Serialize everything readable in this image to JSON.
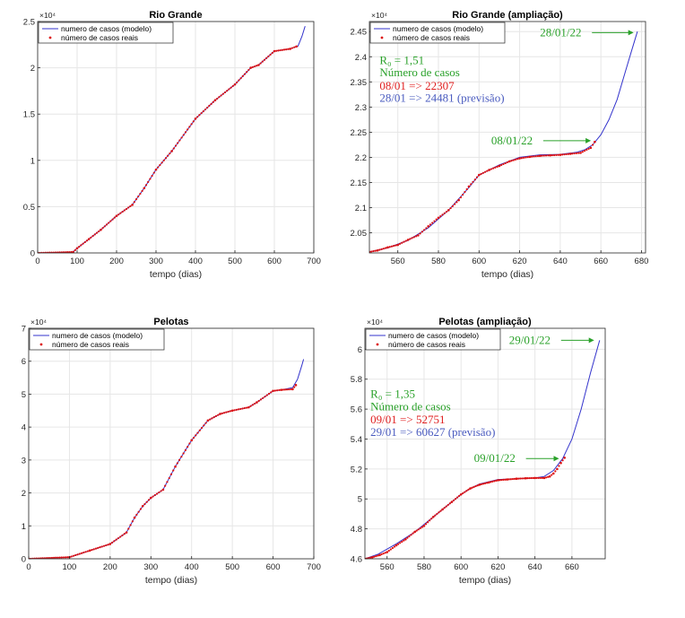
{
  "figure": {
    "colors": {
      "model": "#3333cc",
      "real": "#dd1111",
      "annotation_green": "#2aa12a",
      "annotation_red": "#e02020",
      "annotation_blue": "#4a5bbf",
      "grid": "#e6e6e6"
    }
  },
  "chart_data": [
    {
      "id": "rg",
      "type": "line",
      "title": "Rio Grande",
      "xlabel": "tempo (dias)",
      "ylabel": "",
      "exponent_label": "×10⁴",
      "xlim": [
        0,
        700
      ],
      "ylim": [
        0,
        2.5
      ],
      "xticks": [
        0,
        100,
        200,
        300,
        400,
        500,
        600,
        700
      ],
      "yticks": [
        0,
        0.5,
        1,
        1.5,
        2,
        2.5
      ],
      "ytick_labels": [
        "0",
        "0.5",
        "1",
        "1.5",
        "2",
        "2.5"
      ],
      "grid": true,
      "legend": {
        "position": "top-left",
        "entries": [
          "numero de casos (modelo)",
          "número de casos reais"
        ]
      },
      "series": [
        {
          "name": "numero de casos (modelo)",
          "style": "line",
          "x": [
            0,
            90,
            100,
            130,
            160,
            200,
            240,
            270,
            300,
            340,
            400,
            450,
            500,
            540,
            560,
            600,
            640,
            660,
            670,
            678
          ],
          "y": [
            0,
            0.01,
            0.05,
            0.15,
            0.25,
            0.4,
            0.52,
            0.7,
            0.9,
            1.1,
            1.45,
            1.65,
            1.82,
            2.0,
            2.03,
            2.18,
            2.205,
            2.235,
            2.34,
            2.45
          ]
        },
        {
          "name": "número de casos reais",
          "style": "dots",
          "x": [
            0,
            90,
            100,
            130,
            160,
            200,
            240,
            270,
            300,
            340,
            400,
            450,
            500,
            540,
            560,
            600,
            640,
            656
          ],
          "y": [
            0,
            0.01,
            0.05,
            0.15,
            0.25,
            0.4,
            0.52,
            0.7,
            0.9,
            1.1,
            1.45,
            1.65,
            1.82,
            2.0,
            2.03,
            2.18,
            2.205,
            2.2307
          ]
        }
      ],
      "annotations": []
    },
    {
      "id": "rg_zoom",
      "type": "line",
      "title": "Rio Grande (ampliação)",
      "xlabel": "tempo (dias)",
      "ylabel": "",
      "exponent_label": "×10⁴",
      "xlim": [
        546,
        682
      ],
      "ylim": [
        2.01,
        2.47
      ],
      "xticks": [
        560,
        580,
        600,
        620,
        640,
        660,
        680
      ],
      "yticks": [
        2.05,
        2.1,
        2.15,
        2.2,
        2.25,
        2.3,
        2.35,
        2.4,
        2.45
      ],
      "ytick_labels": [
        "2.05",
        "2.1",
        "2.15",
        "2.2",
        "2.25",
        "2.3",
        "2.35",
        "2.4",
        "2.45"
      ],
      "grid": true,
      "legend": {
        "position": "top-left",
        "entries": [
          "numero de casos (modelo)",
          "número de casos reais"
        ]
      },
      "series": [
        {
          "name": "numero de casos (modelo)",
          "style": "line",
          "x": [
            546,
            555,
            565,
            575,
            585,
            595,
            600,
            610,
            620,
            630,
            640,
            648,
            652,
            656,
            660,
            664,
            668,
            672,
            675,
            678
          ],
          "y": [
            2.012,
            2.02,
            2.035,
            2.06,
            2.095,
            2.14,
            2.165,
            2.185,
            2.2,
            2.205,
            2.206,
            2.21,
            2.215,
            2.225,
            2.245,
            2.275,
            2.315,
            2.37,
            2.41,
            2.45
          ]
        },
        {
          "name": "número de casos reais",
          "style": "dots",
          "x": [
            546,
            550,
            555,
            560,
            565,
            570,
            575,
            580,
            585,
            590,
            595,
            600,
            605,
            610,
            615,
            620,
            625,
            630,
            635,
            640,
            645,
            650,
            655,
            657
          ],
          "y": [
            2.012,
            2.015,
            2.021,
            2.026,
            2.036,
            2.045,
            2.063,
            2.08,
            2.095,
            2.115,
            2.142,
            2.165,
            2.175,
            2.183,
            2.192,
            2.198,
            2.201,
            2.203,
            2.204,
            2.205,
            2.207,
            2.209,
            2.219,
            2.2307
          ]
        }
      ],
      "annotations": [
        {
          "text": "28/01/22",
          "color": "green",
          "kind": "arrow",
          "tx": 630,
          "ty": 2.448,
          "ax": 677,
          "ay": 2.448
        },
        {
          "text": "08/01/22",
          "color": "green",
          "kind": "arrow",
          "tx": 606,
          "ty": 2.233,
          "ax": 656,
          "ay": 2.233
        },
        {
          "text": "R₀ = 1,51",
          "color": "green",
          "kind": "text",
          "tx": 551,
          "ty": 2.392
        },
        {
          "text": "Número de casos",
          "color": "green",
          "kind": "text",
          "tx": 551,
          "ty": 2.368
        },
        {
          "text": "08/01 => 22307",
          "color": "red",
          "kind": "text",
          "tx": 551,
          "ty": 2.342
        },
        {
          "text": "28/01 => 24481 (previsão)",
          "color": "blue",
          "kind": "text",
          "tx": 551,
          "ty": 2.318
        }
      ]
    },
    {
      "id": "pel",
      "type": "line",
      "title": "Pelotas",
      "xlabel": "tempo (dias)",
      "ylabel": "",
      "exponent_label": "×10⁴",
      "xlim": [
        0,
        700
      ],
      "ylim": [
        0,
        7
      ],
      "xticks": [
        0,
        100,
        200,
        300,
        400,
        500,
        600,
        700
      ],
      "yticks": [
        0,
        1,
        2,
        3,
        4,
        5,
        6,
        7
      ],
      "ytick_labels": [
        "0",
        "1",
        "2",
        "3",
        "4",
        "5",
        "6",
        "7"
      ],
      "grid": true,
      "legend": {
        "position": "top-left",
        "entries": [
          "numero de casos (modelo)",
          "número de casos reais"
        ]
      },
      "series": [
        {
          "name": "numero de casos (modelo)",
          "style": "line",
          "x": [
            0,
            100,
            150,
            200,
            240,
            260,
            280,
            300,
            330,
            360,
            400,
            440,
            470,
            500,
            540,
            560,
            600,
            620,
            648,
            660,
            670,
            675
          ],
          "y": [
            0,
            0.05,
            0.25,
            0.45,
            0.8,
            1.25,
            1.6,
            1.85,
            2.1,
            2.8,
            3.6,
            4.2,
            4.4,
            4.5,
            4.6,
            4.75,
            5.1,
            5.13,
            5.2,
            5.45,
            5.85,
            6.06
          ]
        },
        {
          "name": "número de casos reais",
          "style": "dots",
          "x": [
            0,
            100,
            150,
            200,
            240,
            260,
            280,
            300,
            330,
            360,
            400,
            440,
            470,
            500,
            540,
            560,
            600,
            620,
            648,
            656
          ],
          "y": [
            0,
            0.05,
            0.25,
            0.45,
            0.8,
            1.25,
            1.6,
            1.85,
            2.1,
            2.8,
            3.6,
            4.2,
            4.4,
            4.5,
            4.6,
            4.75,
            5.1,
            5.13,
            5.15,
            5.2751
          ]
        }
      ],
      "annotations": []
    },
    {
      "id": "pel_zoom",
      "type": "line",
      "title": "Pelotas (ampliação)",
      "xlabel": "tempo (dias)",
      "ylabel": "",
      "exponent_label": "×10⁴",
      "xlim": [
        548,
        678
      ],
      "ylim": [
        4.6,
        6.14
      ],
      "xticks": [
        560,
        580,
        600,
        620,
        640,
        660
      ],
      "yticks": [
        4.6,
        4.8,
        5,
        5.2,
        5.4,
        5.6,
        5.8,
        6
      ],
      "ytick_labels": [
        "4.6",
        "4.8",
        "5",
        "5.2",
        "5.4",
        "5.6",
        "5.8",
        "6"
      ],
      "grid": true,
      "legend": {
        "position": "top-left",
        "entries": [
          "numero de casos (modelo)",
          "número de casos reais"
        ]
      },
      "series": [
        {
          "name": "numero de casos (modelo)",
          "style": "line",
          "x": [
            548,
            555,
            565,
            575,
            585,
            595,
            600,
            605,
            610,
            620,
            630,
            640,
            645,
            650,
            655,
            660,
            665,
            670,
            675
          ],
          "y": [
            4.6,
            4.63,
            4.7,
            4.78,
            4.88,
            4.98,
            5.03,
            5.07,
            5.1,
            5.13,
            5.135,
            5.14,
            5.15,
            5.19,
            5.27,
            5.4,
            5.6,
            5.84,
            6.06
          ]
        },
        {
          "name": "número de casos reais",
          "style": "dots",
          "x": [
            548,
            552,
            556,
            560,
            565,
            570,
            575,
            580,
            585,
            590,
            595,
            600,
            605,
            610,
            615,
            620,
            625,
            630,
            635,
            640,
            645,
            648,
            650,
            652,
            654,
            656
          ],
          "y": [
            4.6,
            4.61,
            4.625,
            4.645,
            4.69,
            4.73,
            4.78,
            4.82,
            4.88,
            4.93,
            4.98,
            5.03,
            5.07,
            5.095,
            5.11,
            5.125,
            5.13,
            5.135,
            5.138,
            5.14,
            5.14,
            5.15,
            5.17,
            5.2,
            5.24,
            5.2751
          ]
        }
      ],
      "annotations": [
        {
          "text": "29/01/22",
          "color": "green",
          "kind": "arrow",
          "tx": 626,
          "ty": 6.06,
          "ax": 673,
          "ay": 6.06
        },
        {
          "text": "09/01/22",
          "color": "green",
          "kind": "arrow",
          "tx": 607,
          "ty": 5.27,
          "ax": 654,
          "ay": 5.27
        },
        {
          "text": "R₀ = 1,35",
          "color": "green",
          "kind": "text",
          "tx": 551,
          "ty": 5.7
        },
        {
          "text": "Número de casos",
          "color": "green",
          "kind": "text",
          "tx": 551,
          "ty": 5.615
        },
        {
          "text": "09/01 => 52751",
          "color": "red",
          "kind": "text",
          "tx": 551,
          "ty": 5.53
        },
        {
          "text": "29/01 => 60627 (previsão)",
          "color": "blue",
          "kind": "text",
          "tx": 551,
          "ty": 5.445
        }
      ]
    }
  ]
}
